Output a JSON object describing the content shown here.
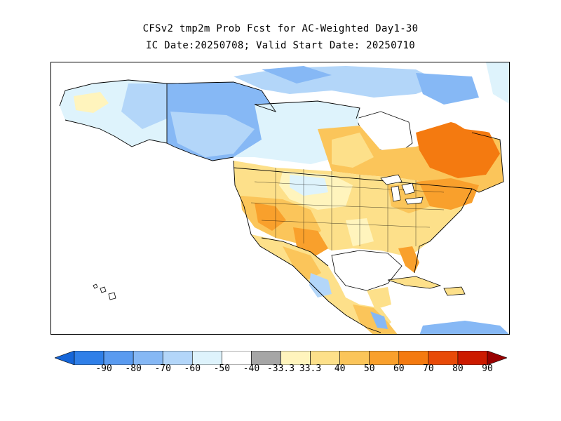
{
  "figure": {
    "title_line1": "CFSv2 tmp2m Prob Fcst for AC-Weighted Day1-30",
    "title_line2": "IC Date:20250708; Valid Start Date: 20250710"
  },
  "legend": {
    "labels": [
      "-90",
      "-80",
      "-70",
      "-60",
      "-50",
      "-40",
      "-33.3",
      "33.3",
      "40",
      "50",
      "60",
      "70",
      "80",
      "90"
    ],
    "colors": [
      "#1565d8",
      "#2f7fe8",
      "#5a9bf0",
      "#86b8f5",
      "#b3d6f9",
      "#def3fc",
      "#ffffff",
      "#a6a6a6",
      "#fff4bd",
      "#fde08a",
      "#fbc55a",
      "#f9a02c",
      "#f47a10",
      "#e84a08",
      "#cc1a00",
      "#990000"
    ]
  },
  "map": {
    "region": "North America",
    "colors": {
      "border": "#000000",
      "land_default": "#fdf3c0",
      "ocean": "#ffffff"
    }
  }
}
